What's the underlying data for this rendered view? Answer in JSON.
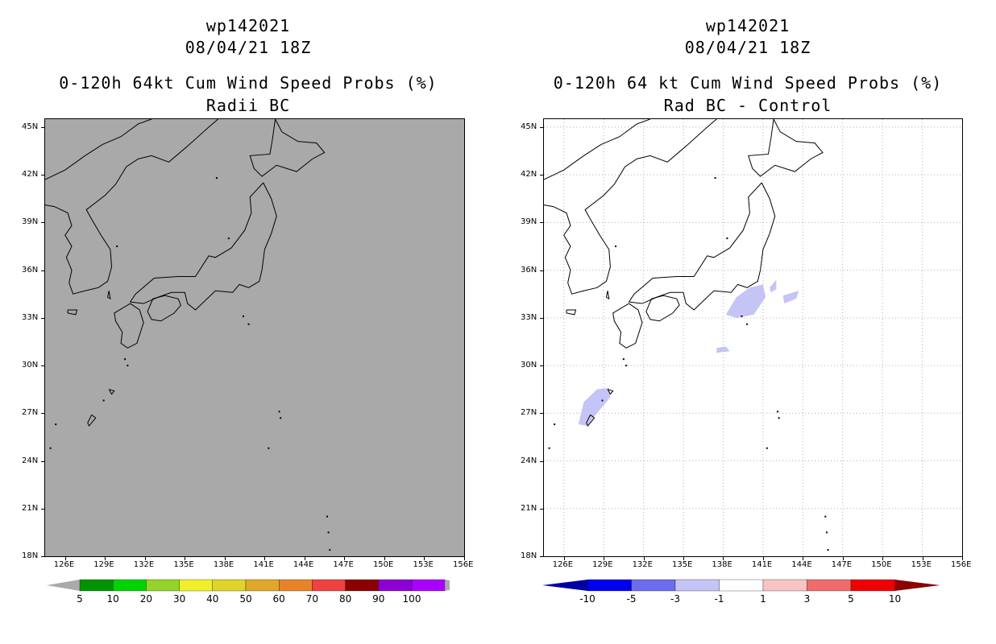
{
  "left_panel": {
    "storm_id": "wp142021",
    "datetime": "08/04/21 18Z",
    "title": "0-120h 64kt Cum Wind Speed Probs (%)",
    "subtitle": "Radii BC",
    "background_color": "#a9a9a9",
    "colorbar": {
      "colors": [
        "#a9a9a9",
        "#009400",
        "#00d400",
        "#94d42a",
        "#f0f02a",
        "#e0d42a",
        "#e0a82a",
        "#e88428",
        "#f04040",
        "#8c0000",
        "#8c00d4",
        "#aa00ff",
        "#a9a9a9"
      ],
      "labels": [
        "5",
        "10",
        "20",
        "30",
        "40",
        "50",
        "60",
        "70",
        "80",
        "90",
        "100"
      ]
    }
  },
  "right_panel": {
    "storm_id": "wp142021",
    "datetime": "08/04/21 18Z",
    "title": "0-120h 64 kt Cum Wind Speed Probs (%)",
    "subtitle": "Rad BC - Control",
    "background_color": "#ffffff",
    "shading_color": "#c4c4f6",
    "colorbar": {
      "colors": [
        "#0000a0",
        "#0000f0",
        "#6c6cf0",
        "#c4c4f6",
        "#ffffff",
        "#f8c4c4",
        "#f06c6c",
        "#f00000",
        "#8c0000"
      ],
      "labels": [
        "-10",
        "-5",
        "-3",
        "-1",
        "1",
        "3",
        "5",
        "10"
      ]
    }
  },
  "axes": {
    "x_labels": [
      "126E",
      "129E",
      "132E",
      "135E",
      "138E",
      "141E",
      "144E",
      "147E",
      "150E",
      "153E",
      "156E"
    ],
    "y_labels": [
      "45N",
      "42N",
      "39N",
      "36N",
      "33N",
      "30N",
      "27N",
      "24N",
      "21N",
      "18N"
    ],
    "lon_range": [
      124.5,
      156
    ],
    "lat_range": [
      18,
      45.5
    ]
  }
}
